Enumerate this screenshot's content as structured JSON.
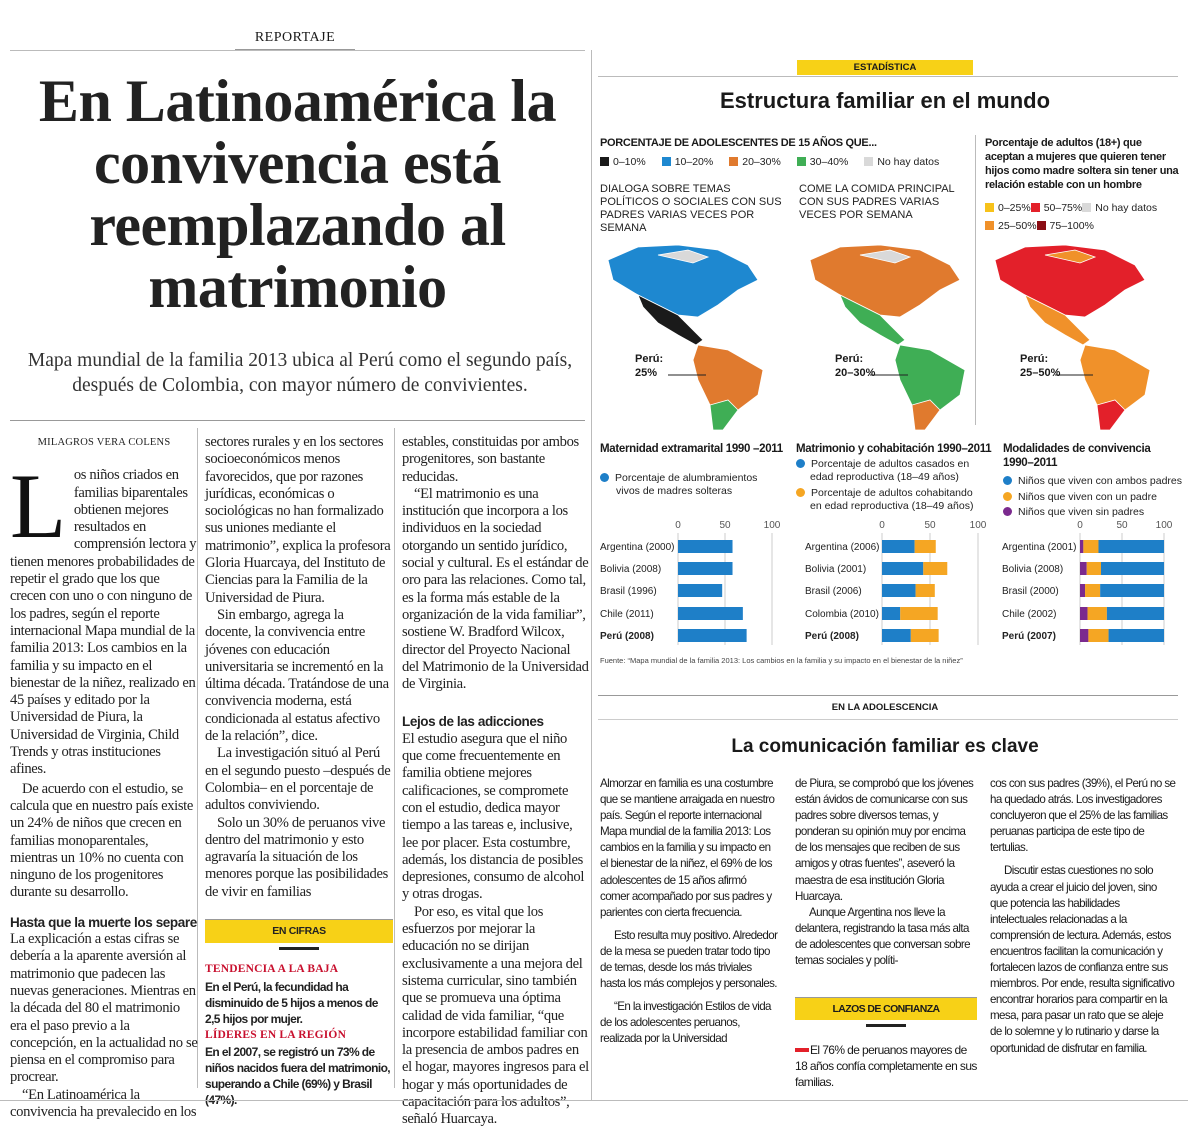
{
  "article": {
    "section": "REPORTAJE",
    "headline": "En Latinoamérica la convivencia está reemplazando al matrimonio",
    "subtitle": "Mapa mundial de la familia 2013 ubica al Perú como el segundo país, después de Colombia, con mayor número de convivientes.",
    "byline": "MILAGROS VERA COLENS",
    "dropcap": "L",
    "col1": {
      "p1": "os niños criados en familias biparentales obtienen mejores resultados en comprensión lectora y tienen menores probabilidades de repetir el grado que los que crecen con uno o con ninguno de los padres, según el reporte internacional Mapa mundial de la familia 2013: Los cambios en la familia y su impacto en el bienestar de la niñez, realizado en 45 países y editado por la Universidad de Piura, la Universidad de Virginia, Child Trends y otras instituciones afines.",
      "p2": "De acuerdo con el estudio, se calcula que en nuestro país existe un 24% de niños que crecen en familias monoparentales, mientras un 10% no cuenta con ninguno de los progenitores durante su desarrollo.",
      "subhead": "Hasta que la muerte los separe",
      "p3": "La explicación a estas cifras se debería a la aparente aversión al matrimonio que padecen las nuevas generaciones. Mientras en la década del 80 el matrimonio era el paso previo a la concepción, en la actualidad no se piensa en el compromiso para procrear.",
      "p4": "“En Latinoamérica la convivencia ha prevalecido en los"
    },
    "col2": {
      "p1": "sectores rurales y en los sectores socioeconómicos menos favorecidos, que por razones jurídicas, económicas o sociológicas no han formalizado sus uniones mediante el matrimonio”, explica la profesora Gloria Huarcaya, del Instituto de Ciencias para la Familia de la Universidad de Piura.",
      "p2": "Sin embargo, agrega la docente, la convivencia entre jóvenes con educación universitaria se incrementó en la última década. Tratándose de una convivencia moderna, está condicionada al estatus afectivo de la relación”, dice.",
      "p3": "La investigación situó al Perú en el segundo puesto –después de Colombia– en el porcentaje de adultos conviviendo.",
      "p4": "Solo un 30% de peruanos vive dentro del matrimonio y esto agravaría la situación de los menores porque las posibilidades de vivir en familias"
    },
    "col3": {
      "p1": "estables, constituidas por ambos progenitores, son bastante reducidas.",
      "p2": "“El matrimonio es una institución que incorpora a los individuos en la sociedad otorgando un sentido jurídico, social y cultural. Es el estándar de oro para las relaciones. Como tal, es la forma más estable de la organización de la vida familiar”, sostiene W. Bradford Wilcox, director del Proyecto Nacional del Matrimonio de la Universidad de Virginia.",
      "subhead": "Lejos de las adicciones",
      "p3": "El estudio asegura que el niño que come frecuentemente en familia obtiene mejores calificaciones, se compromete con el estudio, dedica mayor tiempo a las tareas e, inclusive, lee por placer. Esta costumbre, además, los distancia de posibles depresiones, consumo de alcohol y otras drogas.",
      "p4": "Por eso, es vital que los esfuerzos por mejorar la educación no se dirijan exclusivamente a una mejora del sistema curricular, sino también que se promueva una óptima calidad de vida familiar, “que incorpore estabilidad familiar con la presencia de ambos padres en el hogar, mayores ingresos para el hogar y más oportunidades de capacitación para los adultos”, señaló Huarcaya."
    },
    "en_cifras": {
      "tag": "EN CIFRAS",
      "h1": "TENDENCIA A LA BAJA",
      "t1": "En el Perú, la fecundidad ha disminuido de 5 hijos a menos de 2,5 hijos por mujer.",
      "h2": "LÍDERES EN LA REGIÓN",
      "t2": "En el 2007, se registró un 73% de niños nacidos fuera del matrimonio, superando a Chile (69%) y Brasil (47%)."
    }
  },
  "infographic": {
    "tag": "ESTADÍSTICA",
    "title": "Estructura familiar en el mundo",
    "teen_heading": "PORCENTAJE DE ADOLESCENTES DE 15 AÑOS QUE...",
    "teen_legend": [
      {
        "label": "0–10%",
        "color": "#1a1a1a"
      },
      {
        "label": "10–20%",
        "color": "#1e88d0"
      },
      {
        "label": "20–30%",
        "color": "#e07a2e"
      },
      {
        "label": "30–40%",
        "color": "#3fae55"
      },
      {
        "label": "No hay datos",
        "color": "#d9d9d9"
      }
    ],
    "map1_caption": "DIALOGA SOBRE TEMAS POLÍTICOS O SOCIALES CON SUS PADRES VARIAS VECES POR SEMANA",
    "map2_caption": "COME LA COMIDA PRINCIPAL CON SUS PADRES VARIAS VECES POR SEMANA",
    "map3_caption": "Porcentaje de adultos (18+) que aceptan a mujeres que quieren tener hijos como madre soltera sin tener una relación estable con un hombre",
    "adult_legend": [
      {
        "label": "0–25%",
        "color": "#f7c21a"
      },
      {
        "label": "50–75%",
        "color": "#e3202a"
      },
      {
        "label": "No hay datos",
        "color": "#d9d9d9"
      },
      {
        "label": "25–50%",
        "color": "#f0912a"
      },
      {
        "label": "75–100%",
        "color": "#8b0d14"
      }
    ],
    "map1_peru": {
      "name": "Perú:",
      "value": "25%"
    },
    "map2_peru": {
      "name": "Perú:",
      "value": "20–30%"
    },
    "map3_peru": {
      "name": "Perú:",
      "value": "25–50%"
    },
    "source": "Fuente: “Mapa mundial de la familia 2013: Los cambios en la familia y su impacto en el bienestar de la niñez”"
  },
  "chart_data": [
    {
      "type": "bar",
      "title": "Maternidad extramarital 1990 –2011",
      "legend": [
        "Porcentaje de alumbramientos vivos de madres solteras"
      ],
      "categories": [
        "Argentina (2000)",
        "Bolivia (2008)",
        "Brasil (1996)",
        "Chile (2011)",
        "Perú (2008)"
      ],
      "series": [
        {
          "name": "Porcentaje de alumbramientos vivos de madres solteras",
          "color": "#1e7fc8",
          "values": [
            58,
            58,
            47,
            69,
            73
          ]
        }
      ],
      "ticks": [
        "0",
        "50",
        "100"
      ],
      "xlim": [
        0,
        100
      ]
    },
    {
      "type": "bar",
      "stacked": true,
      "title": "Matrimonio y cohabitación 1990–2011",
      "legend": [
        "Porcentaje de adultos casados en edad reproductiva (18–49 años)",
        "Porcentaje de adultos cohabitando en edad reproductiva (18–49 años)"
      ],
      "categories": [
        "Argentina (2006)",
        "Bolivia (2001)",
        "Brasil (2006)",
        "Colombia (2010)",
        "Perú (2008)"
      ],
      "series": [
        {
          "name": "Casados",
          "color": "#1e7fc8",
          "values": [
            34,
            43,
            35,
            19,
            30
          ]
        },
        {
          "name": "Cohabitando",
          "color": "#f5a623",
          "values": [
            22,
            25,
            20,
            39,
            29
          ]
        }
      ],
      "ticks": [
        "0",
        "50",
        "100"
      ],
      "xlim": [
        0,
        100
      ]
    },
    {
      "type": "bar",
      "stacked": true,
      "title": "Modalidades de convivencia 1990–2011",
      "legend": [
        "Niños que viven con ambos padres",
        "Niños que viven con un padre",
        "Niños que viven sin padres"
      ],
      "categories": [
        "Argentina (2001)",
        "Bolivia (2008)",
        "Brasil (2000)",
        "Chile (2002)",
        "Perú (2007)"
      ],
      "series": [
        {
          "name": "Sin padres",
          "color": "#7b2a8e",
          "values": [
            4,
            8,
            6,
            9,
            10
          ]
        },
        {
          "name": "Un padre",
          "color": "#f5a623",
          "values": [
            18,
            17,
            18,
            23,
            24
          ]
        },
        {
          "name": "Ambos padres",
          "color": "#1e7fc8",
          "values": [
            78,
            75,
            76,
            68,
            66
          ]
        }
      ],
      "ticks": [
        "0",
        "50",
        "100"
      ],
      "xlim": [
        0,
        100
      ]
    }
  ],
  "adolescence": {
    "tag": "EN LA ADOLESCENCIA",
    "title": "La comunicación familiar es clave",
    "c1p1": "Almorzar en familia es una costumbre que se mantiene arraigada en nuestro país. Según el reporte internacional Mapa mundial de la familia 2013: Los cambios en la familia y su impacto en el bienestar de la niñez, el 69% de los adolescentes de 15 años afirmó comer acompañado por sus padres y parientes con cierta frecuencia.",
    "c1p2": "Esto resulta muy positivo. Alrededor de la mesa se pueden tratar todo tipo de temas, desde los más triviales hasta los más complejos y personales.",
    "c1p3": "“En la investigación Estilos de vida de los adolescentes peruanos, realizada por la Universidad",
    "c2p1": "de Piura, se comprobó que los jóvenes están ávidos de comunicarse con sus padres sobre diversos temas, y ponderan su opinión muy por encima de los mensajes que reciben de sus amigos y otras fuentes”, aseveró la maestra de esa institución Gloria Huarcaya.",
    "c2p2": "Aunque Argentina nos lleve la delantera, registrando la tasa más alta de adolescentes que conversan sobre temas sociales y políti-",
    "lazos_tag": "LAZOS DE CONFIANZA",
    "lazos_text": "El 76% de peruanos mayores de 18 años confía completamente en sus familias.",
    "c3p1": "cos con sus padres (39%), el Perú no se ha quedado atrás. Los investigadores concluyeron que el 25% de las familias peruanas participa de este tipo de tertulias.",
    "c3p2": "Discutir estas cuestiones no solo ayuda a crear el juicio del joven, sino que potencia las habilidades intelectuales relacionadas a la comprensión de lectura. Además, estos encuentros facilitan la comunicación y fortalecen lazos de confianza entre sus miembros. Por ende, resulta significativo encontrar horarios para compartir en la mesa, para pasar un rato que se aleje de lo solemne y lo rutinario y darse la oportunidad de disfrutar en familia."
  }
}
